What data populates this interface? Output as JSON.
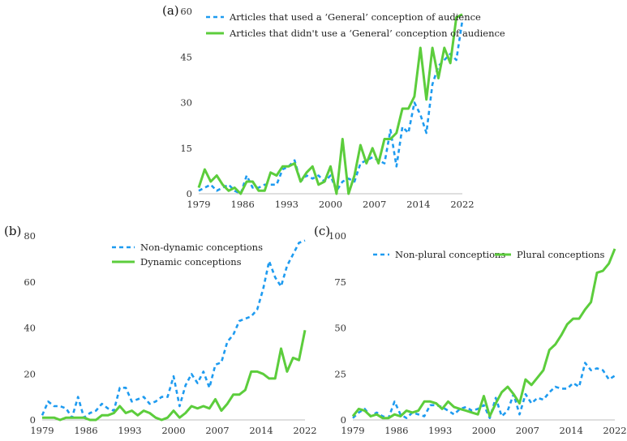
{
  "chart_data": [
    {
      "id": "a",
      "type": "line",
      "panel_label": "(a)",
      "title": "",
      "xlabel": "",
      "ylabel": "",
      "x_ticks": [
        "1979",
        "1986",
        "1993",
        "2000",
        "2007",
        "2014",
        "2022"
      ],
      "y_ticks": [
        "0",
        "15",
        "30",
        "45",
        "60"
      ],
      "ylim": [
        0,
        60
      ],
      "legend_position": "top-left",
      "series": [
        {
          "name": "Articles that used a ‘General’ conception of audience",
          "style": "dashed",
          "color": "#1e9bf0",
          "values": [
            1,
            2,
            3,
            1,
            2,
            3,
            1,
            0,
            6,
            2,
            2,
            3,
            3,
            3,
            8,
            9,
            11,
            4,
            6,
            5,
            6,
            4,
            6,
            1,
            4,
            5,
            4,
            10,
            11,
            12,
            11,
            10,
            21,
            9,
            22,
            20,
            30,
            26,
            20,
            36,
            42,
            44,
            46,
            44,
            57
          ]
        },
        {
          "name": "Articles that didn't use a ‘General’ conception of audience",
          "style": "solid",
          "color": "#5ccd3c",
          "values": [
            2,
            8,
            4,
            6,
            3,
            1,
            2,
            0,
            4,
            4,
            1,
            1,
            7,
            6,
            9,
            9,
            10,
            4,
            7,
            9,
            3,
            4,
            9,
            0,
            18,
            0,
            6,
            16,
            10,
            15,
            10,
            18,
            18,
            20,
            28,
            28,
            32,
            48,
            31,
            48,
            38,
            48,
            43,
            58,
            59
          ]
        }
      ]
    },
    {
      "id": "b",
      "type": "line",
      "panel_label": "(b)",
      "title": "",
      "xlabel": "",
      "ylabel": "",
      "x_ticks": [
        "1979",
        "1986",
        "1993",
        "2000",
        "2007",
        "2014",
        "2022"
      ],
      "y_ticks": [
        "0",
        "20",
        "40",
        "60",
        "80"
      ],
      "ylim": [
        0,
        80
      ],
      "legend_position": "top-left",
      "series": [
        {
          "name": "Non-dynamic conceptions",
          "style": "dashed",
          "color": "#1e9bf0",
          "values": [
            2,
            8,
            6,
            6,
            5,
            1,
            10,
            1,
            3,
            4,
            7,
            5,
            4,
            14,
            14,
            8,
            9,
            10,
            7,
            8,
            10,
            10,
            19,
            6,
            15,
            20,
            16,
            21,
            14,
            24,
            25,
            34,
            37,
            43,
            44,
            45,
            48,
            57,
            69,
            62,
            58,
            67,
            72,
            77,
            78
          ]
        },
        {
          "name": "Dynamic conceptions",
          "style": "solid",
          "color": "#5ccd3c",
          "values": [
            1,
            1,
            1,
            0,
            1,
            1,
            1,
            1,
            0,
            0,
            2,
            2,
            3,
            6,
            3,
            4,
            2,
            4,
            3,
            1,
            0,
            1,
            4,
            1,
            3,
            6,
            5,
            6,
            5,
            9,
            4,
            7,
            11,
            11,
            13,
            21,
            21,
            20,
            18,
            18,
            31,
            21,
            27,
            26,
            39
          ]
        }
      ]
    },
    {
      "id": "c",
      "type": "line",
      "panel_label": "(c)",
      "title": "",
      "xlabel": "",
      "ylabel": "",
      "x_ticks": [
        "1979",
        "1986",
        "1993",
        "2000",
        "2007",
        "2014",
        "2022"
      ],
      "y_ticks": [
        "0",
        "25",
        "50",
        "75",
        "100"
      ],
      "ylim": [
        0,
        100
      ],
      "legend_position": "top",
      "series": [
        {
          "name": "Non-plural conceptions",
          "style": "dashed",
          "color": "#1e9bf0",
          "values": [
            1,
            4,
            6,
            2,
            4,
            2,
            1,
            10,
            3,
            1,
            4,
            3,
            2,
            8,
            8,
            7,
            5,
            3,
            6,
            7,
            5,
            6,
            8,
            1,
            12,
            2,
            5,
            14,
            3,
            14,
            9,
            12,
            11,
            15,
            18,
            17,
            17,
            20,
            18,
            31,
            27,
            28,
            27,
            22,
            24
          ]
        },
        {
          "name": "Plural conceptions",
          "style": "solid",
          "color": "#5ccd3c",
          "values": [
            2,
            6,
            5,
            2,
            3,
            1,
            1,
            3,
            2,
            5,
            4,
            5,
            10,
            10,
            9,
            6,
            10,
            7,
            6,
            5,
            4,
            3,
            13,
            2,
            9,
            15,
            18,
            14,
            9,
            22,
            19,
            23,
            27,
            38,
            41,
            46,
            52,
            55,
            55,
            60,
            64,
            80,
            81,
            85,
            93
          ]
        }
      ]
    }
  ]
}
